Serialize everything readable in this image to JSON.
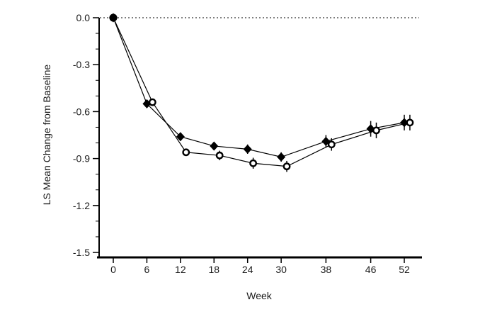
{
  "chart_data": {
    "type": "line",
    "title": "",
    "xlabel": "Week",
    "ylabel": "LS Mean Change from Baseline",
    "xlim": [
      -3,
      55
    ],
    "ylim": [
      -1.5,
      0.0
    ],
    "x_ticks": [
      0,
      6,
      12,
      18,
      24,
      30,
      38,
      46,
      52
    ],
    "x_tick_labels": [
      "0",
      "6",
      "12",
      "18",
      "24",
      "30",
      "38",
      "46",
      "52"
    ],
    "y_ticks": [
      0.0,
      -0.3,
      -0.6,
      -0.9,
      -1.2,
      -1.5
    ],
    "y_tick_labels": [
      "0.0",
      "-0.3",
      "-0.6",
      "-0.9",
      "-1.2",
      "-1.5"
    ],
    "y_minor_tick_step": 0.1,
    "grid": "off",
    "legend": "none",
    "reference_line": {
      "y": 0.0,
      "style": "dotted"
    },
    "baseline_point": {
      "x": 0,
      "y": 0.0,
      "marker": "filled-circle"
    },
    "series": [
      {
        "name": "series-filled-diamond",
        "marker": "filled-diamond",
        "x": [
          0,
          6,
          12,
          18,
          24,
          30,
          38,
          46,
          52
        ],
        "y": [
          0.0,
          -0.55,
          -0.76,
          -0.82,
          -0.84,
          -0.89,
          -0.79,
          -0.71,
          -0.67
        ],
        "yerr": [
          0,
          0.02,
          0.02,
          0.02,
          0.03,
          0.03,
          0.04,
          0.05,
          0.05
        ]
      },
      {
        "name": "series-open-circle",
        "marker": "open-circle",
        "x": [
          0,
          7,
          13,
          19,
          25,
          31,
          39,
          47,
          53
        ],
        "y": [
          0.0,
          -0.54,
          -0.86,
          -0.88,
          -0.93,
          -0.95,
          -0.81,
          -0.72,
          -0.67
        ],
        "yerr": [
          0,
          0.02,
          0.02,
          0.03,
          0.035,
          0.035,
          0.04,
          0.05,
          0.05
        ]
      }
    ],
    "colors": {
      "foreground": "#000000",
      "background": "#ffffff",
      "text": "#1a1a1a"
    }
  }
}
